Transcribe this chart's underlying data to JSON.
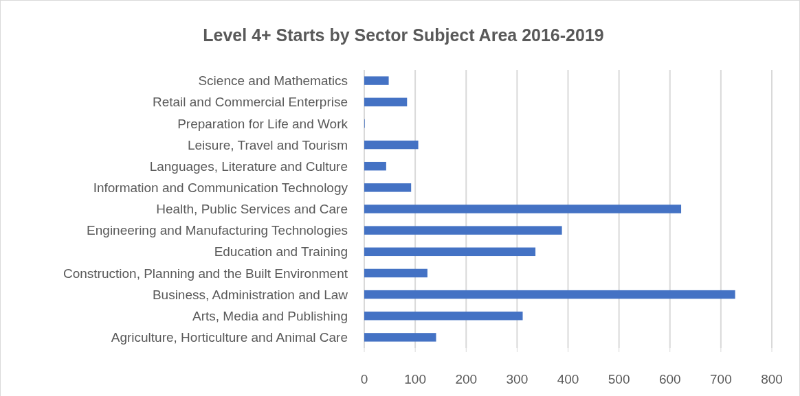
{
  "chart_data": {
    "type": "bar",
    "orientation": "horizontal",
    "title": "Level 4+ Starts by Sector Subject Area 2016-2019",
    "categories": [
      "Science and Mathematics",
      "Retail and Commercial Enterprise",
      "Preparation for Life and Work",
      "Leisure, Travel and Tourism",
      "Languages, Literature and Culture",
      "Information and Communication Technology",
      "Health, Public Services and Care",
      "Engineering and Manufacturing Technologies",
      "Education and Training",
      "Construction, Planning and the Built Environment",
      "Business, Administration and Law",
      "Arts, Media and Publishing",
      "Agriculture, Horticulture and Animal Care"
    ],
    "values": [
      48,
      84,
      1,
      106,
      43,
      92,
      622,
      388,
      336,
      124,
      728,
      311,
      141
    ],
    "color": "#4472c4",
    "xlim": [
      0,
      800
    ],
    "xticks": [
      0,
      100,
      200,
      300,
      400,
      500,
      600,
      700,
      800
    ],
    "grid": "x"
  }
}
